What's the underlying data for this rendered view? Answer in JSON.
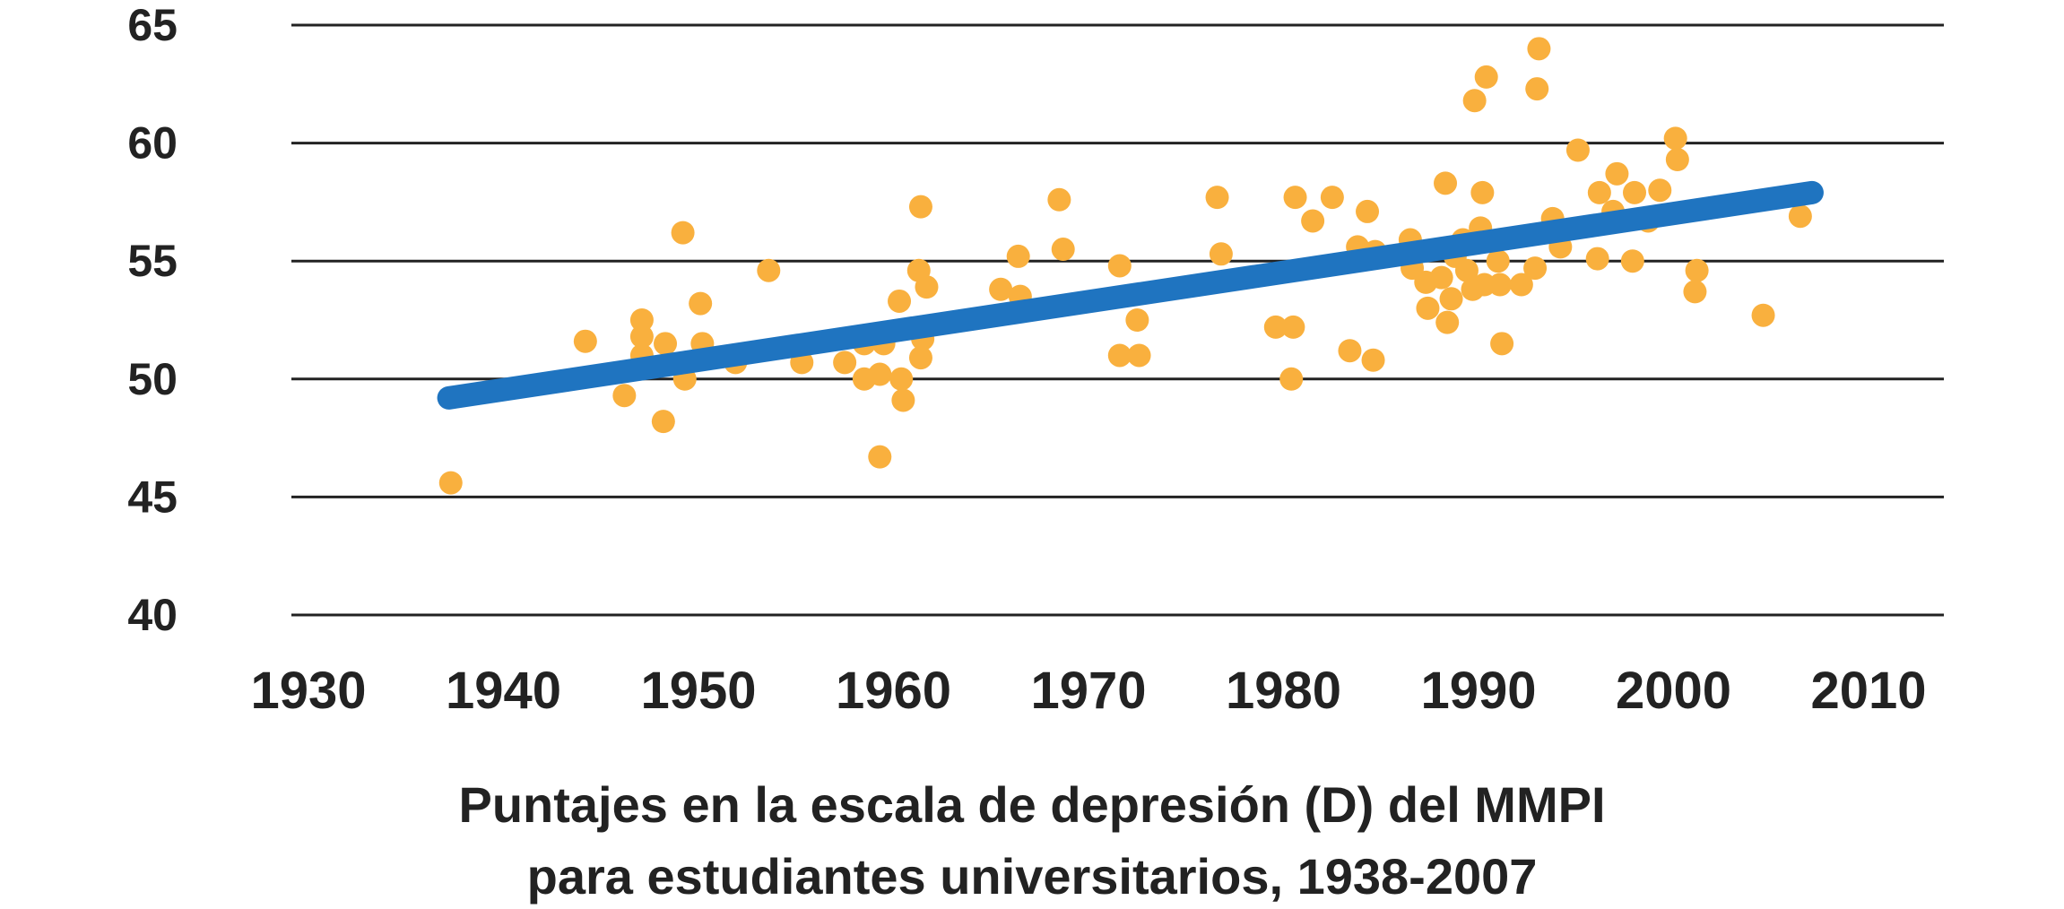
{
  "colors": {
    "points": "#F9B03E",
    "trend": "#1F74C0",
    "grid": "#222222",
    "text": "#222222",
    "background": "#FFFFFF"
  },
  "caption": {
    "line1": "Puntajes en la escala de depresión (D) del MMPI",
    "line2": "para estudiantes universitarios, 1938-2007"
  },
  "chart_data": {
    "type": "scatter",
    "title": "Puntajes en la escala de depresión (D) del MMPI para estudiantes universitarios, 1938-2007",
    "xlabel": "",
    "ylabel": "",
    "xlim": [
      1930,
      2010
    ],
    "ylim": [
      40,
      65
    ],
    "xticks": [
      "1930",
      "1940",
      "1950",
      "1960",
      "1970",
      "1980",
      "1990",
      "2000",
      "2010"
    ],
    "yticks": [
      "40",
      "45",
      "50",
      "55",
      "60",
      "65"
    ],
    "grid": "horizontal",
    "legend": "none",
    "series": [
      {
        "kind": "points",
        "points": [
          [
            1937.3,
            45.6
          ],
          [
            1944.2,
            51.6
          ],
          [
            1946.2,
            49.3
          ],
          [
            1947.1,
            52.5
          ],
          [
            1947.1,
            51.8
          ],
          [
            1947.1,
            51.0
          ],
          [
            1948.2,
            48.2
          ],
          [
            1948.3,
            51.5
          ],
          [
            1949.2,
            56.2
          ],
          [
            1949.3,
            50.0
          ],
          [
            1950.1,
            53.2
          ],
          [
            1950.2,
            51.5
          ],
          [
            1951.9,
            50.7
          ],
          [
            1953.6,
            54.6
          ],
          [
            1955.3,
            50.7
          ],
          [
            1957.5,
            50.7
          ],
          [
            1958.5,
            51.5
          ],
          [
            1958.5,
            50.0
          ],
          [
            1959.3,
            46.7
          ],
          [
            1959.3,
            50.2
          ],
          [
            1959.5,
            51.5
          ],
          [
            1960.3,
            53.3
          ],
          [
            1960.4,
            50.0
          ],
          [
            1960.5,
            49.1
          ],
          [
            1961.3,
            54.6
          ],
          [
            1961.4,
            57.3
          ],
          [
            1961.4,
            50.9
          ],
          [
            1961.5,
            51.7
          ],
          [
            1961.7,
            53.9
          ],
          [
            1965.5,
            53.8
          ],
          [
            1966.4,
            55.2
          ],
          [
            1966.5,
            53.5
          ],
          [
            1968.5,
            57.6
          ],
          [
            1968.7,
            55.5
          ],
          [
            1971.6,
            54.8
          ],
          [
            1971.6,
            51.0
          ],
          [
            1972.5,
            52.5
          ],
          [
            1972.6,
            51.0
          ],
          [
            1976.6,
            57.7
          ],
          [
            1976.8,
            55.3
          ],
          [
            1979.6,
            52.2
          ],
          [
            1980.4,
            50.0
          ],
          [
            1980.5,
            52.2
          ],
          [
            1980.6,
            57.7
          ],
          [
            1981.5,
            56.7
          ],
          [
            1982.5,
            57.7
          ],
          [
            1983.4,
            51.2
          ],
          [
            1983.8,
            55.6
          ],
          [
            1984.3,
            57.1
          ],
          [
            1984.6,
            50.8
          ],
          [
            1984.7,
            55.4
          ],
          [
            1986.5,
            55.9
          ],
          [
            1986.6,
            54.7
          ],
          [
            1987.3,
            54.1
          ],
          [
            1987.4,
            53.0
          ],
          [
            1988.1,
            54.3
          ],
          [
            1988.3,
            58.3
          ],
          [
            1988.4,
            52.4
          ],
          [
            1988.6,
            53.4
          ],
          [
            1988.8,
            55.2
          ],
          [
            1989.2,
            55.9
          ],
          [
            1989.4,
            54.6
          ],
          [
            1989.7,
            53.8
          ],
          [
            1989.8,
            61.8
          ],
          [
            1990.1,
            56.4
          ],
          [
            1990.2,
            57.9
          ],
          [
            1990.3,
            54.0
          ],
          [
            1990.4,
            62.8
          ],
          [
            1991.0,
            55.0
          ],
          [
            1991.1,
            54.0
          ],
          [
            1991.2,
            51.5
          ],
          [
            1992.2,
            54.0
          ],
          [
            1992.9,
            54.7
          ],
          [
            1993.0,
            62.3
          ],
          [
            1993.1,
            64.0
          ],
          [
            1993.8,
            56.8
          ],
          [
            1994.2,
            55.6
          ],
          [
            1995.1,
            59.7
          ],
          [
            1996.1,
            55.1
          ],
          [
            1996.2,
            57.9
          ],
          [
            1996.9,
            57.1
          ],
          [
            1997.1,
            58.7
          ],
          [
            1997.9,
            55.0
          ],
          [
            1998.0,
            57.9
          ],
          [
            1998.7,
            56.7
          ],
          [
            1999.3,
            58.0
          ],
          [
            2000.1,
            60.2
          ],
          [
            2000.2,
            59.3
          ],
          [
            2001.1,
            53.7
          ],
          [
            2001.2,
            54.6
          ],
          [
            2004.6,
            52.7
          ],
          [
            2006.5,
            56.9
          ]
        ]
      },
      {
        "kind": "trend_line",
        "points": [
          [
            1937.2,
            49.2
          ],
          [
            2007.1,
            57.9
          ]
        ]
      }
    ]
  }
}
